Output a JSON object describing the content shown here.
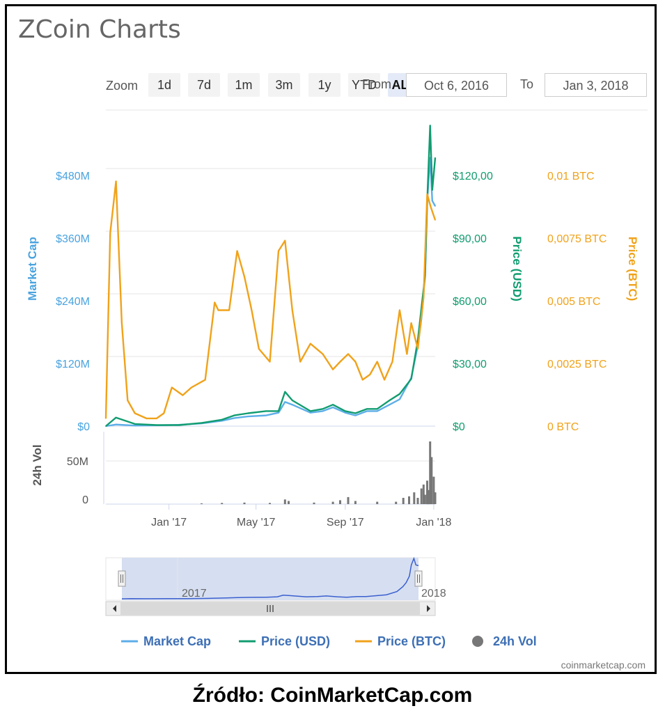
{
  "header": {
    "title": "ZCoin Charts"
  },
  "zoom": {
    "label": "Zoom",
    "buttons": [
      "1d",
      "7d",
      "1m",
      "3m",
      "1y",
      "YTD",
      "ALL"
    ],
    "active": "ALL"
  },
  "range": {
    "from_label": "From",
    "from_value": "Oct 6, 2016",
    "to_label": "To",
    "to_value": "Jan 3, 2018"
  },
  "source": "Źródło: CoinMarketCap.com",
  "watermark": "coinmarketcap.com",
  "colors": {
    "market_cap": "#5daee8",
    "price_usd": "#119c70",
    "price_btc": "#f0a21a",
    "volume": "#777777",
    "market_cap_axis": "#4aa3df",
    "navigator_fill": "#cfd9ee",
    "navigator_line": "#3a5fcf"
  },
  "chart_data": {
    "type": "line",
    "title": "ZCoin Charts",
    "x_range": [
      "2016-10-06",
      "2018-01-03"
    ],
    "x_ticks": [
      "Jan '17",
      "May '17",
      "Sep '17",
      "Jan '18"
    ],
    "axes": {
      "market_cap": {
        "label": "Market Cap",
        "ticks": [
          "$0",
          "$120M",
          "$240M",
          "$360M",
          "$480M"
        ],
        "ylim": [
          0,
          480000000
        ]
      },
      "price_usd": {
        "label": "Price (USD)",
        "ticks": [
          "$0",
          "$30,00",
          "$60,00",
          "$90,00",
          "$120,00"
        ],
        "ylim": [
          0,
          120
        ]
      },
      "price_btc": {
        "label": "Price (BTC)",
        "ticks": [
          "0 BTC",
          "0,0025 BTC",
          "0,005 BTC",
          "0,0075 BTC",
          "0,01 BTC"
        ],
        "ylim": [
          0,
          0.01
        ]
      },
      "volume": {
        "label": "24h Vol",
        "ticks": [
          "0",
          "50M"
        ],
        "ylim": [
          0,
          80000000
        ]
      }
    },
    "series": [
      {
        "name": "Market Cap",
        "x": [
          "2016-10-06",
          "2016-10-20",
          "2016-11-15",
          "2016-12-15",
          "2017-01-15",
          "2017-02-15",
          "2017-03-15",
          "2017-04-01",
          "2017-04-20",
          "2017-05-15",
          "2017-06-01",
          "2017-06-10",
          "2017-06-20",
          "2017-07-15",
          "2017-08-01",
          "2017-08-15",
          "2017-09-01",
          "2017-09-15",
          "2017-10-01",
          "2017-10-15",
          "2017-11-01",
          "2017-11-15",
          "2017-12-01",
          "2017-12-10",
          "2017-12-15",
          "2017-12-20",
          "2017-12-23",
          "2017-12-27",
          "2017-12-30",
          "2018-01-03"
        ],
        "values": [
          0,
          3000000,
          1000000,
          1500000,
          2500000,
          5000000,
          10000000,
          15000000,
          18000000,
          20000000,
          25000000,
          45000000,
          40000000,
          25000000,
          28000000,
          35000000,
          25000000,
          20000000,
          28000000,
          28000000,
          40000000,
          50000000,
          90000000,
          150000000,
          200000000,
          280000000,
          420000000,
          500000000,
          420000000,
          410000000
        ]
      },
      {
        "name": "Price (USD)",
        "x": [
          "2016-10-06",
          "2016-10-20",
          "2016-11-15",
          "2016-12-15",
          "2017-01-15",
          "2017-02-15",
          "2017-03-15",
          "2017-04-01",
          "2017-04-20",
          "2017-05-15",
          "2017-06-01",
          "2017-06-10",
          "2017-06-20",
          "2017-07-15",
          "2017-08-01",
          "2017-08-15",
          "2017-09-01",
          "2017-09-15",
          "2017-10-01",
          "2017-10-15",
          "2017-11-01",
          "2017-11-15",
          "2017-12-01",
          "2017-12-10",
          "2017-12-15",
          "2017-12-20",
          "2017-12-23",
          "2017-12-27",
          "2017-12-30",
          "2018-01-03"
        ],
        "values": [
          0,
          4,
          1,
          0.5,
          0.5,
          1.5,
          3,
          5,
          6,
          7,
          7,
          16,
          12,
          7,
          8,
          10,
          7,
          6,
          8,
          8,
          12,
          15,
          22,
          40,
          55,
          70,
          105,
          140,
          110,
          125
        ]
      },
      {
        "name": "Price (BTC)",
        "x": [
          "2016-10-06",
          "2016-10-12",
          "2016-10-20",
          "2016-10-28",
          "2016-11-05",
          "2016-11-15",
          "2016-12-01",
          "2016-12-15",
          "2016-12-25",
          "2017-01-05",
          "2017-01-20",
          "2017-02-01",
          "2017-02-20",
          "2017-03-05",
          "2017-03-10",
          "2017-03-25",
          "2017-04-05",
          "2017-04-15",
          "2017-04-25",
          "2017-05-05",
          "2017-05-20",
          "2017-06-01",
          "2017-06-10",
          "2017-06-20",
          "2017-07-01",
          "2017-07-15",
          "2017-08-01",
          "2017-08-15",
          "2017-08-25",
          "2017-09-05",
          "2017-09-15",
          "2017-09-25",
          "2017-10-05",
          "2017-10-15",
          "2017-10-25",
          "2017-11-05",
          "2017-11-15",
          "2017-11-25",
          "2017-12-01",
          "2017-12-10",
          "2017-12-18",
          "2017-12-23",
          "2017-12-28",
          "2018-01-03"
        ],
        "values": [
          0.0003,
          0.0075,
          0.0095,
          0.004,
          0.001,
          0.0005,
          0.0003,
          0.0003,
          0.0005,
          0.0015,
          0.0012,
          0.0015,
          0.0018,
          0.0048,
          0.0045,
          0.0045,
          0.0068,
          0.0058,
          0.0045,
          0.003,
          0.0025,
          0.0068,
          0.0072,
          0.0045,
          0.0025,
          0.0032,
          0.0028,
          0.0022,
          0.0025,
          0.0028,
          0.0025,
          0.0018,
          0.002,
          0.0025,
          0.0018,
          0.0025,
          0.0045,
          0.0028,
          0.004,
          0.003,
          0.005,
          0.009,
          0.0085,
          0.008
        ]
      },
      {
        "name": "24h Vol",
        "x": [
          "2017-02-15",
          "2017-03-15",
          "2017-04-15",
          "2017-05-20",
          "2017-06-10",
          "2017-06-15",
          "2017-07-20",
          "2017-08-15",
          "2017-08-25",
          "2017-09-05",
          "2017-09-15",
          "2017-10-15",
          "2017-11-10",
          "2017-11-20",
          "2017-11-28",
          "2017-12-05",
          "2017-12-10",
          "2017-12-15",
          "2017-12-18",
          "2017-12-20",
          "2017-12-23",
          "2017-12-25",
          "2017-12-27",
          "2017-12-29",
          "2018-01-01",
          "2018-01-03"
        ],
        "values": [
          1000000,
          1500000,
          2000000,
          1500000,
          6000000,
          4000000,
          2000000,
          3000000,
          5000000,
          9000000,
          4000000,
          3000000,
          3000000,
          8000000,
          10000000,
          15000000,
          8000000,
          20000000,
          25000000,
          12000000,
          30000000,
          18000000,
          80000000,
          60000000,
          35000000,
          15000000
        ]
      }
    ],
    "navigator": {
      "x_ticks": [
        "2017",
        "2018"
      ]
    },
    "legend": {
      "position": "bottom",
      "items": [
        "Market Cap",
        "Price (USD)",
        "Price (BTC)",
        "24h Vol"
      ]
    }
  }
}
